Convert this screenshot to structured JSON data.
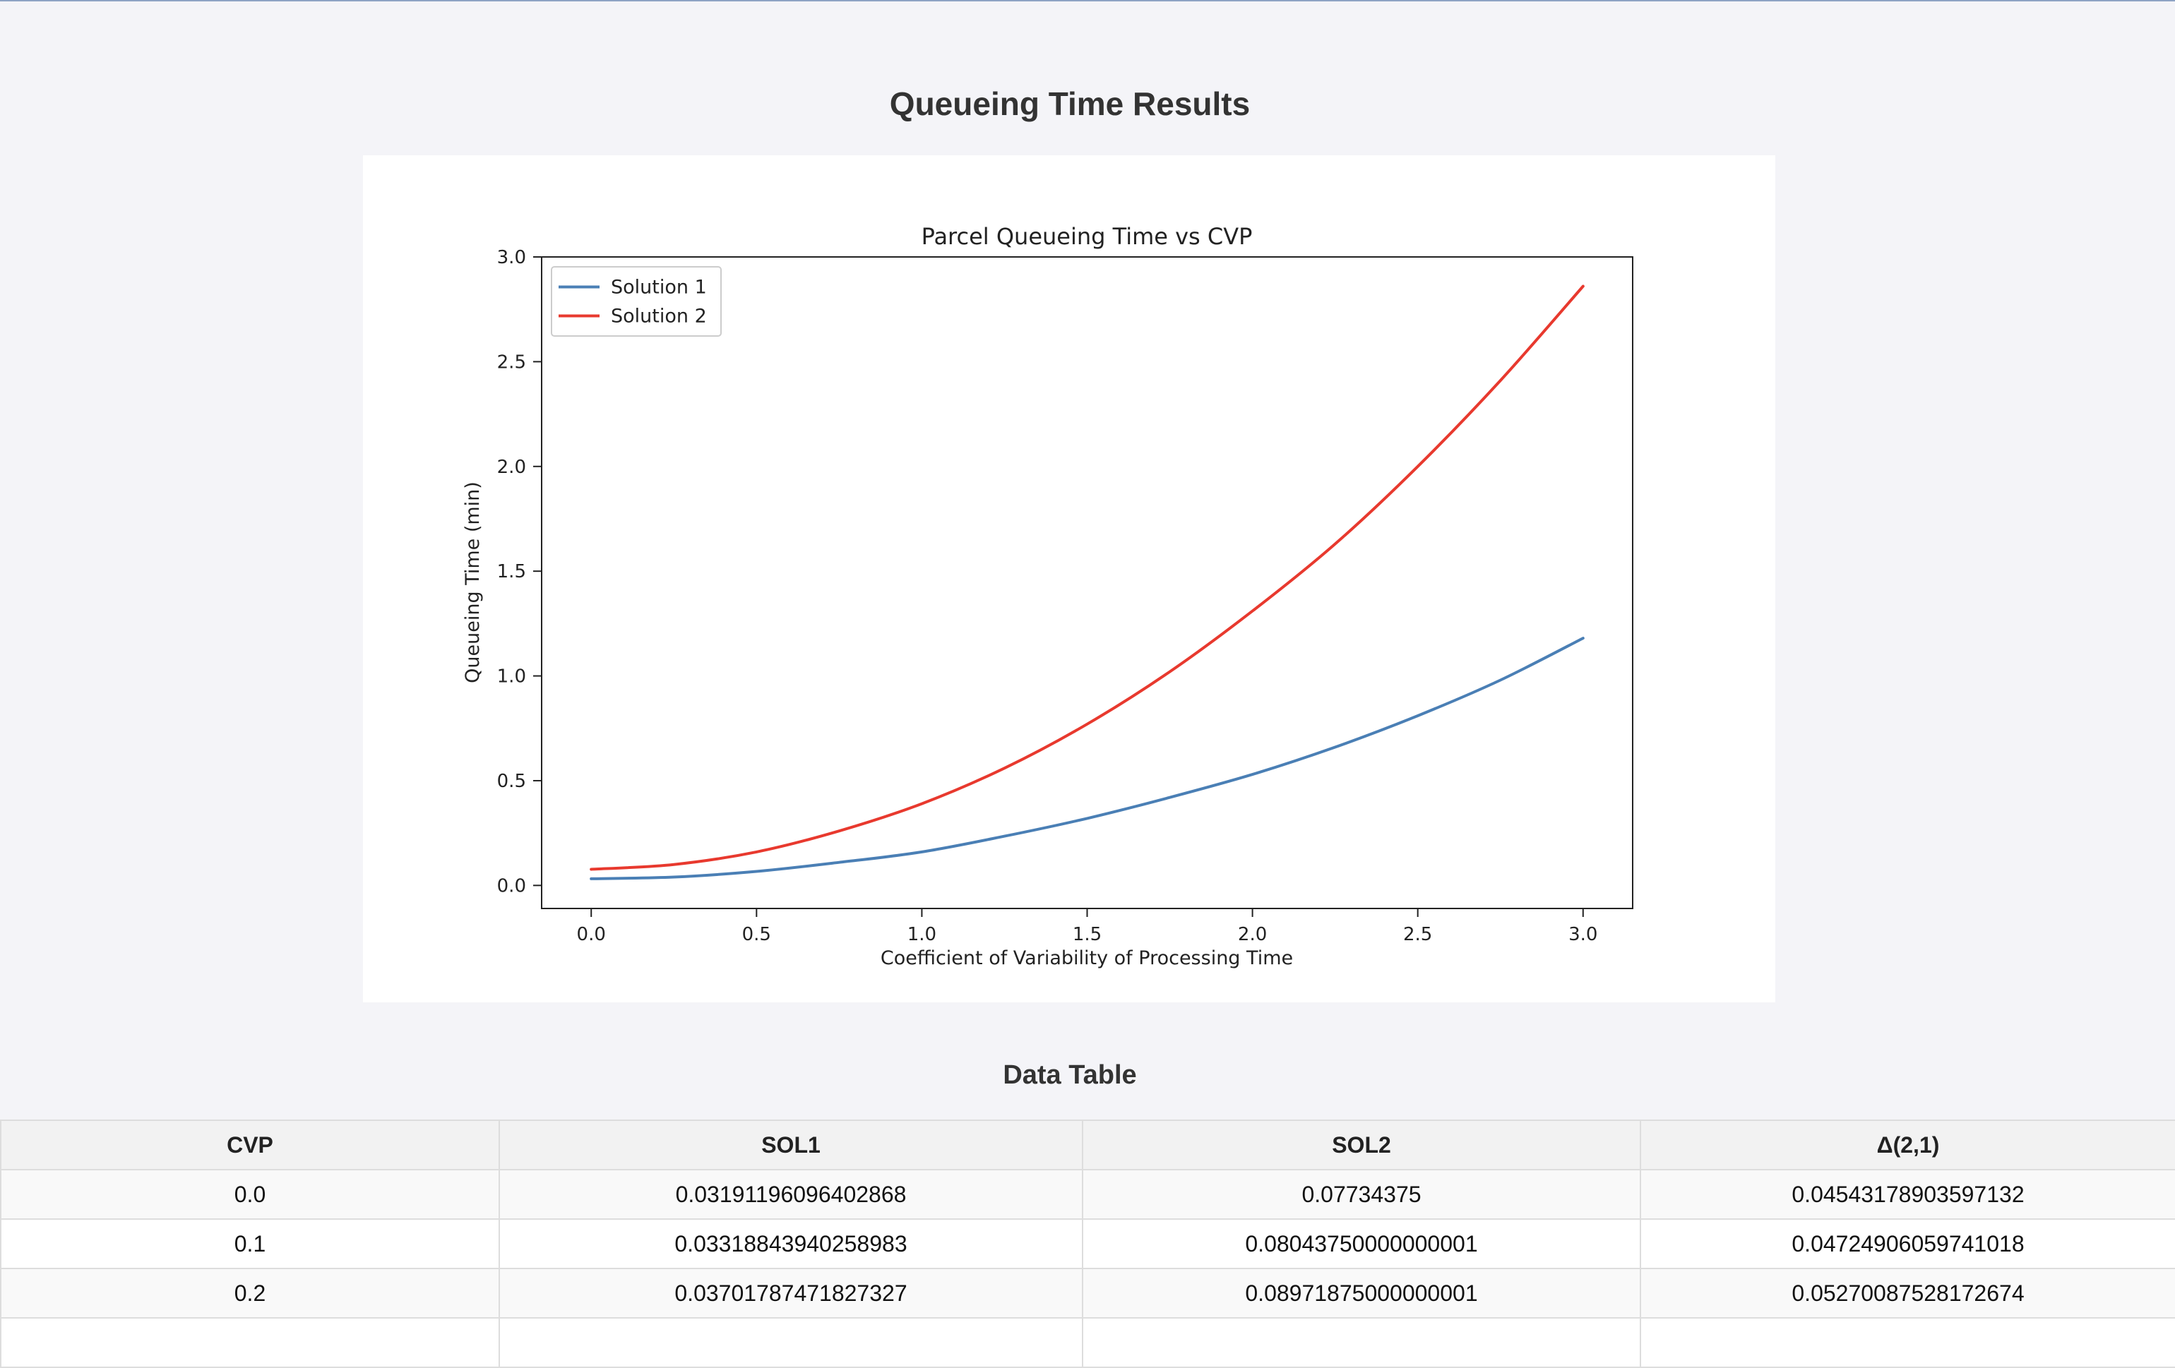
{
  "page": {
    "title": "Queueing Time Results",
    "table_title": "Data Table"
  },
  "chart_data": {
    "type": "line",
    "title": "Parcel Queueing Time vs CVP",
    "xlabel": "Coefficient of Variability of Processing Time",
    "ylabel": "Queueing Time (min)",
    "xlim": [
      -0.15,
      3.15
    ],
    "ylim": [
      -0.11,
      3.0
    ],
    "xticks": [
      0.0,
      0.5,
      1.0,
      1.5,
      2.0,
      2.5,
      3.0
    ],
    "yticks": [
      0.0,
      0.5,
      1.0,
      1.5,
      2.0,
      2.5,
      3.0
    ],
    "xtick_labels": [
      "0.0",
      "0.5",
      "1.0",
      "1.5",
      "2.0",
      "2.5",
      "3.0"
    ],
    "ytick_labels": [
      "0.0",
      "0.5",
      "1.0",
      "1.5",
      "2.0",
      "2.5",
      "3.0"
    ],
    "grid": false,
    "legend_position": "top-left",
    "x": [
      0.0,
      0.25,
      0.5,
      0.75,
      1.0,
      1.25,
      1.5,
      1.75,
      2.0,
      2.25,
      2.5,
      2.75,
      3.0
    ],
    "series": [
      {
        "name": "Solution 1",
        "color": "#4a7fb5",
        "values": [
          0.032,
          0.04,
          0.067,
          0.11,
          0.16,
          0.235,
          0.32,
          0.42,
          0.53,
          0.66,
          0.81,
          0.98,
          1.18
        ]
      },
      {
        "name": "Solution 2",
        "color": "#e8392e",
        "values": [
          0.077,
          0.1,
          0.16,
          0.26,
          0.39,
          0.56,
          0.77,
          1.02,
          1.31,
          1.63,
          2.0,
          2.41,
          2.86
        ]
      }
    ]
  },
  "table": {
    "headers": [
      "CVP",
      "SOL1",
      "SOL2",
      "Δ(2,1)"
    ],
    "rows": [
      [
        "0.0",
        "0.03191196096402868",
        "0.07734375",
        "0.04543178903597132"
      ],
      [
        "0.1",
        "0.03318843940258983",
        "0.08043750000000001",
        "0.04724906059741018"
      ],
      [
        "0.2",
        "0.03701787471827327",
        "0.08971875000000001",
        "0.05270087528172674"
      ],
      [
        "",
        "",
        "",
        ""
      ]
    ]
  }
}
